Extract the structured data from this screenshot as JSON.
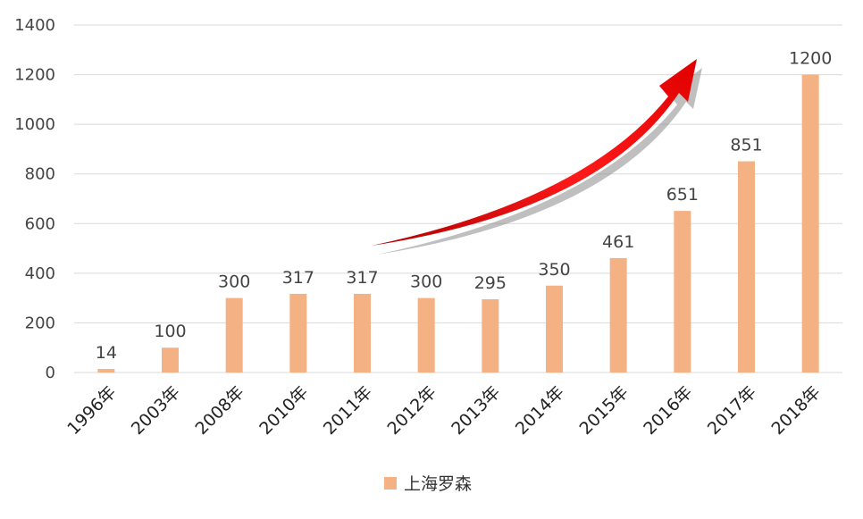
{
  "chart_data": {
    "type": "bar",
    "categories": [
      "1996年",
      "2003年",
      "2008年",
      "2010年",
      "2011年",
      "2012年",
      "2013年",
      "2014年",
      "2015年",
      "2016年",
      "2017年",
      "2018年"
    ],
    "series": [
      {
        "name": "上海罗森",
        "values": [
          14,
          100,
          300,
          317,
          317,
          300,
          295,
          350,
          461,
          651,
          851,
          1200
        ],
        "color": "#f4b183"
      }
    ],
    "ylim": [
      0,
      1400
    ],
    "yticks": [
      0,
      200,
      400,
      600,
      800,
      1000,
      1200,
      1400
    ],
    "grid": true,
    "legend_position": "bottom",
    "annotation": {
      "type": "arrow",
      "color": "#e8191b",
      "direction": "up-right"
    }
  }
}
